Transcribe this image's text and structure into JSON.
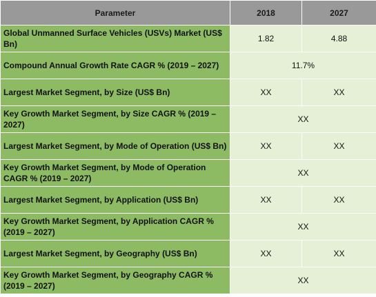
{
  "header": {
    "parameter": "Parameter",
    "col_2018": "2018",
    "col_2027": "2027"
  },
  "rows": [
    {
      "parameter": "Global Unmanned Surface Vehicles (USVs) Market (US$ Bn)",
      "v2018": "1.82",
      "v2027": "4.88"
    },
    {
      "parameter": "Compound Annual Growth Rate CAGR % (2019 – 2027)",
      "merged": "11.7%"
    },
    {
      "parameter": "Largest Market Segment, by Size (US$ Bn)",
      "v2018": "XX",
      "v2027": "XX"
    },
    {
      "parameter": "Key Growth Market Segment, by Size CAGR % (2019 – 2027)",
      "merged": "XX"
    },
    {
      "parameter": "Largest Market Segment, by Mode of Operation (US$ Bn)",
      "v2018": "XX",
      "v2027": "XX"
    },
    {
      "parameter": "Key Growth Market Segment, by Mode of Operation CAGR % (2019 – 2027)",
      "merged": "XX"
    },
    {
      "parameter": "Largest Market Segment, by Application (US$ Bn)",
      "v2018": "XX",
      "v2027": "XX"
    },
    {
      "parameter": "Key Growth Market Segment, by Application CAGR % (2019 – 2027)",
      "merged": "XX"
    },
    {
      "parameter": "Largest Market Segment, by Geography (US$ Bn)",
      "v2018": "XX",
      "v2027": "XX"
    },
    {
      "parameter": "Key Growth Market Segment, by Geography CAGR % (2019 – 2027)",
      "merged": "XX"
    }
  ]
}
